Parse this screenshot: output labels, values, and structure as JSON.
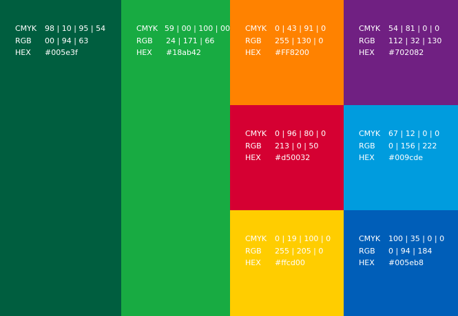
{
  "swatches": [
    {
      "cmyk_label": "CMYK",
      "cmyk": "98 | 10 | 95 | 54",
      "rgb_label": "RGB",
      "rgb": "00 | 94 | 63",
      "hex_label": "HEX",
      "hex": "#005e3f"
    },
    {
      "cmyk_label": "CMYK",
      "cmyk": "59 | 00 | 100 | 00",
      "rgb_label": "RGB",
      "rgb": "24 | 171 | 66",
      "hex_label": "HEX",
      "hex": "#18ab42"
    },
    {
      "cmyk_label": "CMYK",
      "cmyk": "0 | 43 | 91 | 0",
      "rgb_label": "RGB",
      "rgb": "255 | 130 | 0",
      "hex_label": "HEX",
      "hex": "#FF8200"
    },
    {
      "cmyk_label": "CMYK",
      "cmyk": "54 | 81 | 0 | 0",
      "rgb_label": "RGB",
      "rgb": "112 | 32 | 130",
      "hex_label": "HEX",
      "hex": "#702082"
    },
    {
      "cmyk_label": "CMYK",
      "cmyk": "0 | 96 | 80 | 0",
      "rgb_label": "RGB",
      "rgb": "213 | 0 | 50",
      "hex_label": "HEX",
      "hex": "#d50032"
    },
    {
      "cmyk_label": "CMYK",
      "cmyk": "67 | 12 | 0 | 0",
      "rgb_label": "RGB",
      "rgb": "0 | 156 | 222",
      "hex_label": "HEX",
      "hex": "#009cde"
    },
    {
      "cmyk_label": "CMYK",
      "cmyk": "0 | 19 | 100 | 0",
      "rgb_label": "RGB",
      "rgb": "255 | 205 | 0",
      "hex_label": "HEX",
      "hex": "#ffcd00"
    },
    {
      "cmyk_label": "CMYK",
      "cmyk": "100 | 35 | 0 | 0",
      "rgb_label": "RGB",
      "rgb": "0 | 94 | 184",
      "hex_label": "HEX",
      "hex": "#005eb8"
    }
  ]
}
